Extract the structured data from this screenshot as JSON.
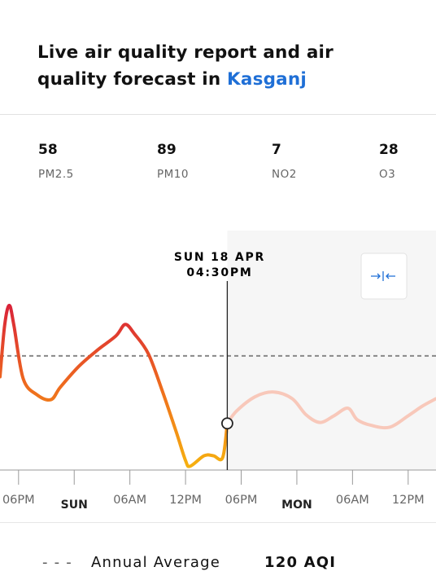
{
  "header": {
    "title": "Live air quality report and air quality forecast in",
    "city": "Kasganj"
  },
  "pollutants": [
    {
      "value": 58,
      "name": "PM2.5"
    },
    {
      "value": 89,
      "name": "PM10"
    },
    {
      "value": 7,
      "name": "NO2"
    },
    {
      "value": 28,
      "name": "O3"
    }
  ],
  "chart_data": {
    "type": "line",
    "xlim": [
      -8,
      39
    ],
    "ylim": [
      0,
      250
    ],
    "xticks": [
      {
        "value": -6,
        "label": "06PM"
      },
      {
        "value": 0,
        "label": "SUN"
      },
      {
        "value": 6,
        "label": "06AM"
      },
      {
        "value": 12,
        "label": "12PM"
      },
      {
        "value": 18,
        "label": "06PM"
      },
      {
        "value": 24,
        "label": "MON"
      },
      {
        "value": 30,
        "label": "06AM"
      },
      {
        "value": 36,
        "label": "12PM"
      }
    ],
    "day_ticks": [
      0,
      24
    ],
    "series": [
      {
        "x": [
          -8,
          -7.5,
          -7,
          -6.5,
          -5.5,
          -4,
          -2.5,
          -1.5,
          0.5,
          2.5,
          4.5,
          5.5,
          6.5,
          8,
          9.5,
          11,
          12,
          12.5,
          14,
          15,
          16,
          16.5
        ],
        "values": [
          98,
          152,
          173,
          152,
          96,
          79,
          74,
          87,
          109,
          126,
          141,
          153,
          143,
          122,
          83,
          40,
          10,
          4,
          15,
          15,
          13,
          49
        ],
        "gradient": [
          "#d81f3a",
          "#ee6a1e",
          "#f6b20f"
        ]
      },
      {
        "x": [
          16.5,
          17.5,
          19.5,
          21.5,
          23.5,
          25,
          26.5,
          28,
          29.5,
          30.5,
          32,
          34,
          36,
          37.5,
          39
        ],
        "values": [
          49,
          62,
          77,
          82,
          75,
          58,
          50,
          57,
          65,
          53,
          47,
          45,
          57,
          67,
          75
        ],
        "color": "#f8c8ba"
      }
    ],
    "marker": {
      "x": 16.5,
      "value": 49,
      "date": "SUN 18 APR",
      "time": "04:30PM"
    },
    "reference": {
      "label": "Annual Average",
      "value": 120,
      "value_label": "120 AQI",
      "color": "#888888"
    }
  }
}
